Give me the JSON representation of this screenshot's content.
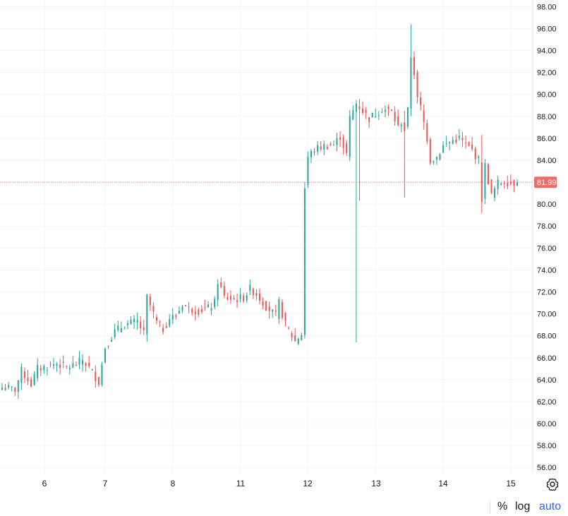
{
  "chart_data": {
    "type": "candlestick",
    "ylim": [
      55.5,
      98.6
    ],
    "y_ticks": [
      "98.00",
      "96.00",
      "94.00",
      "92.00",
      "90.00",
      "88.00",
      "86.00",
      "84.00",
      "82.00",
      "80.00",
      "78.00",
      "76.00",
      "74.00",
      "72.00",
      "70.00",
      "68.00",
      "66.00",
      "64.00",
      "62.00",
      "60.00",
      "58.00",
      "56.00"
    ],
    "x_ticks": [
      "6",
      "7",
      "8",
      "11",
      "12",
      "13",
      "14",
      "15"
    ],
    "grid": true,
    "last_price": "81.99",
    "colors": {
      "up": "#26a69a",
      "down": "#ef5350",
      "last_price": "#f06a6a",
      "grid": "#f0f3fa"
    },
    "keyframes": [
      {
        "t": 0,
        "v": 63.3
      },
      {
        "t": 4,
        "v": 63.1
      },
      {
        "t": 6,
        "v": 64.8
      },
      {
        "t": 9,
        "v": 63.6
      },
      {
        "t": 11,
        "v": 65.0
      },
      {
        "t": 14,
        "v": 65.2
      },
      {
        "t": 17,
        "v": 65.5
      },
      {
        "t": 20,
        "v": 65.1
      },
      {
        "t": 23,
        "v": 65.4
      },
      {
        "t": 25,
        "v": 65.8
      },
      {
        "t": 28,
        "v": 64.7
      },
      {
        "t": 30,
        "v": 63.8
      },
      {
        "t": 32,
        "v": 67.0
      },
      {
        "t": 35,
        "v": 68.4
      },
      {
        "t": 38,
        "v": 69.0
      },
      {
        "t": 42,
        "v": 69.3
      },
      {
        "t": 44,
        "v": 68.2
      },
      {
        "t": 45,
        "v": 71.5
      },
      {
        "t": 48,
        "v": 69.2
      },
      {
        "t": 50,
        "v": 68.6
      },
      {
        "t": 52,
        "v": 69.6
      },
      {
        "t": 54,
        "v": 69.8
      },
      {
        "t": 56,
        "v": 70.9
      },
      {
        "t": 58,
        "v": 70.5
      },
      {
        "t": 61,
        "v": 70.3
      },
      {
        "t": 64,
        "v": 70.5
      },
      {
        "t": 66,
        "v": 71.0
      },
      {
        "t": 67,
        "v": 73.0
      },
      {
        "t": 69,
        "v": 71.5
      },
      {
        "t": 72,
        "v": 71.3
      },
      {
        "t": 75,
        "v": 71.5
      },
      {
        "t": 77,
        "v": 72.3
      },
      {
        "t": 79,
        "v": 71.8
      },
      {
        "t": 82,
        "v": 70.7
      },
      {
        "t": 85,
        "v": 69.8
      },
      {
        "t": 86,
        "v": 71.0
      },
      {
        "t": 88,
        "v": 69.0
      },
      {
        "t": 91,
        "v": 67.5
      },
      {
        "t": 93,
        "v": 68.2
      },
      {
        "t": 94,
        "v": 81.5
      },
      {
        "t": 95,
        "v": 84.3
      },
      {
        "t": 97,
        "v": 85.0
      },
      {
        "t": 100,
        "v": 85.3
      },
      {
        "t": 103,
        "v": 85.4
      },
      {
        "t": 105,
        "v": 86.2
      },
      {
        "t": 107,
        "v": 84.5
      },
      {
        "t": 108,
        "v": 87.8
      },
      {
        "t": 110,
        "v": 89.2
      },
      {
        "t": 112,
        "v": 88.5
      },
      {
        "t": 114,
        "v": 87.8
      },
      {
        "t": 118,
        "v": 88.7
      },
      {
        "t": 121,
        "v": 88.4
      },
      {
        "t": 123,
        "v": 87.0
      },
      {
        "t": 124,
        "v": 87.5
      },
      {
        "t": 125,
        "v": 86.8
      },
      {
        "t": 126,
        "v": 88.5
      },
      {
        "t": 127,
        "v": 93.5
      },
      {
        "t": 128,
        "v": 92.0
      },
      {
        "t": 129,
        "v": 89.5
      },
      {
        "t": 130,
        "v": 88.8
      },
      {
        "t": 132,
        "v": 86.0
      },
      {
        "t": 133,
        "v": 84.0
      },
      {
        "t": 135,
        "v": 84.3
      },
      {
        "t": 137,
        "v": 85.3
      },
      {
        "t": 140,
        "v": 85.8
      },
      {
        "t": 142,
        "v": 86.0
      },
      {
        "t": 144,
        "v": 85.4
      },
      {
        "t": 146,
        "v": 84.9
      },
      {
        "t": 148,
        "v": 84.0
      },
      {
        "t": 149,
        "v": 80.5
      },
      {
        "t": 150,
        "v": 83.5
      },
      {
        "t": 152,
        "v": 80.8
      },
      {
        "t": 154,
        "v": 81.9
      },
      {
        "t": 156,
        "v": 82.1
      },
      {
        "t": 158,
        "v": 81.9
      },
      {
        "t": 160,
        "v": 81.99
      }
    ],
    "spikes": [
      {
        "t": 110,
        "high": 89.5,
        "low": 67.4
      },
      {
        "t": 111,
        "high": 85.4,
        "low": 80.3
      },
      {
        "t": 125,
        "high": 88.5,
        "low": 80.6
      },
      {
        "t": 127,
        "high": 96.4,
        "low": 88.0
      },
      {
        "t": 149,
        "high": 86.3,
        "low": 79.2
      }
    ]
  },
  "footer": {
    "percent_label": "%",
    "log_label": "log",
    "auto_label": "auto"
  },
  "icons": {
    "settings": "gear-icon"
  }
}
